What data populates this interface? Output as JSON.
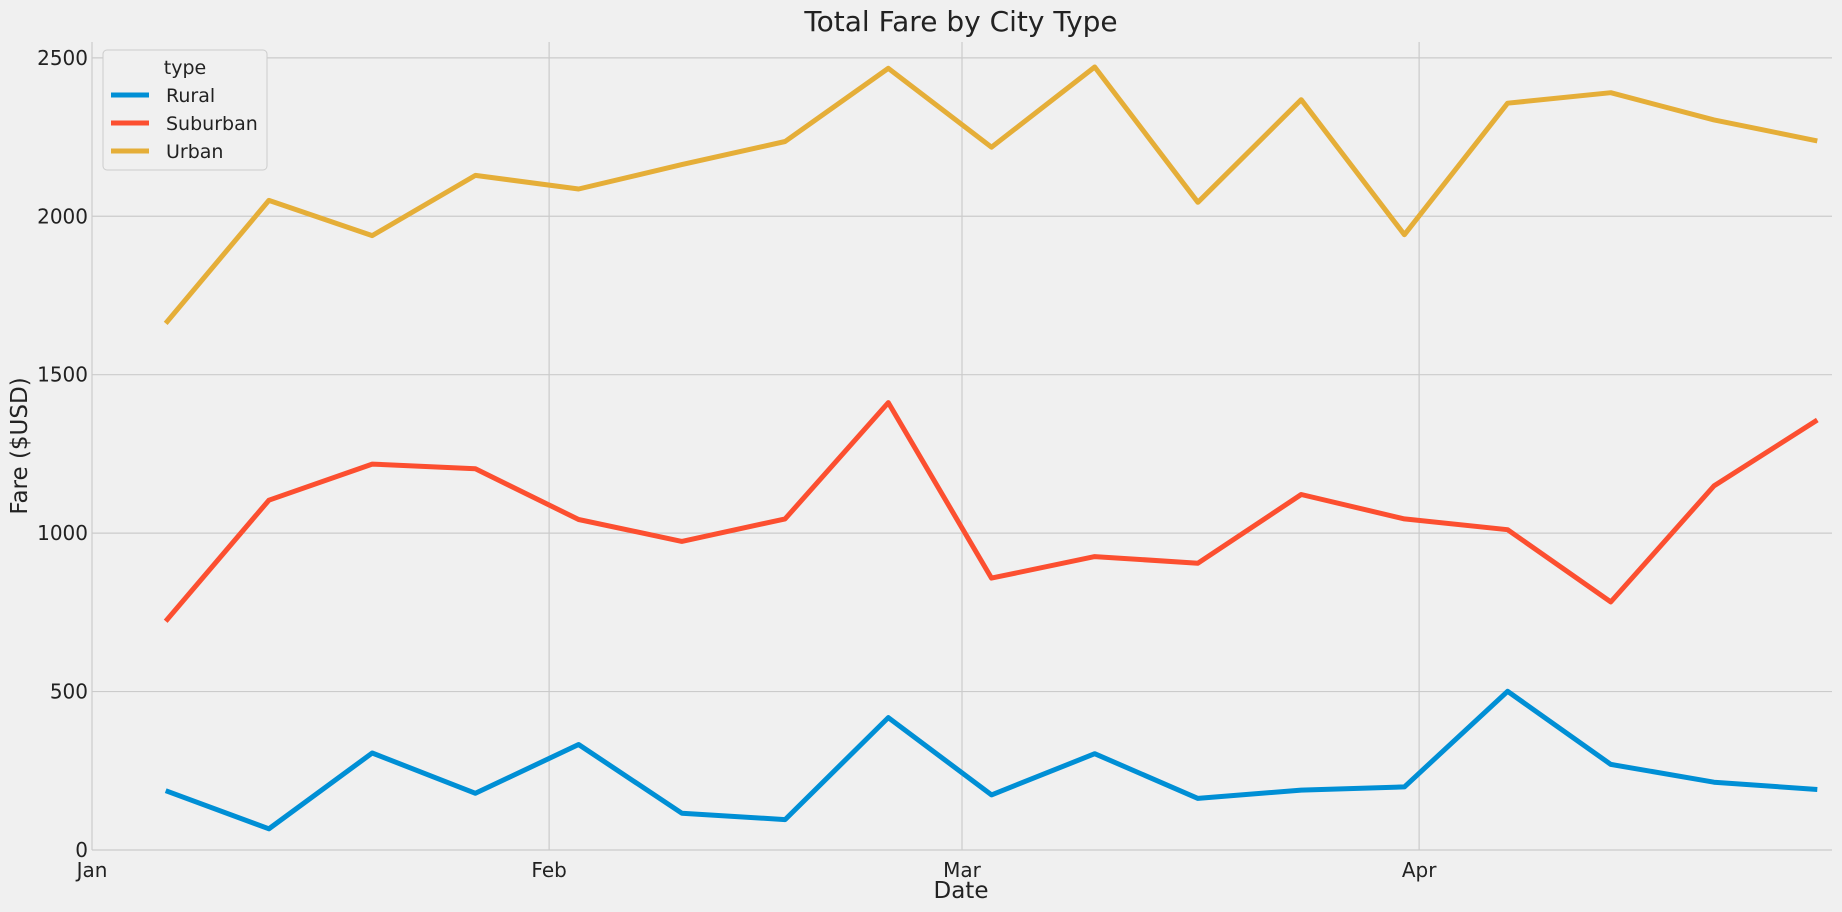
{
  "chart_data": {
    "type": "line",
    "title": "Total Fare by City Type",
    "xlabel": "Date",
    "ylabel": "Fare ($USD)",
    "x_tick_labels": [
      "Jan",
      "Feb",
      "Mar",
      "Apr"
    ],
    "x_tick_dates": [
      "2019-01-01",
      "2019-02-01",
      "2019-03-01",
      "2019-04-01"
    ],
    "xlim": [
      "2019-01-01",
      "2019-04-29"
    ],
    "ylim": [
      0,
      2550
    ],
    "y_ticks": [
      0,
      500,
      1000,
      1500,
      2000,
      2500
    ],
    "grid": true,
    "legend": {
      "title": "type",
      "position": "top-left"
    },
    "x": [
      "2019-01-06",
      "2019-01-13",
      "2019-01-20",
      "2019-01-27",
      "2019-02-03",
      "2019-02-10",
      "2019-02-17",
      "2019-02-24",
      "2019-03-03",
      "2019-03-10",
      "2019-03-17",
      "2019-03-24",
      "2019-03-31",
      "2019-04-07",
      "2019-04-14",
      "2019-04-21",
      "2019-04-28"
    ],
    "series": [
      {
        "name": "Rural",
        "color": "#008fd5",
        "values": [
          187,
          67,
          306,
          179,
          333,
          116,
          96,
          418,
          174,
          304,
          163,
          189,
          199,
          501,
          270,
          214,
          191
        ]
      },
      {
        "name": "Suburban",
        "color": "#fc4f30",
        "values": [
          722,
          1104,
          1218,
          1203,
          1043,
          974,
          1045,
          1412,
          858,
          926,
          905,
          1122,
          1045,
          1011,
          783,
          1149,
          1357
        ]
      },
      {
        "name": "Urban",
        "color": "#e5ae38",
        "values": [
          1662,
          2050,
          1939,
          2129,
          2086,
          2163,
          2236,
          2467,
          2218,
          2471,
          2044,
          2368,
          1942,
          2357,
          2390,
          2304,
          2238
        ]
      }
    ]
  }
}
